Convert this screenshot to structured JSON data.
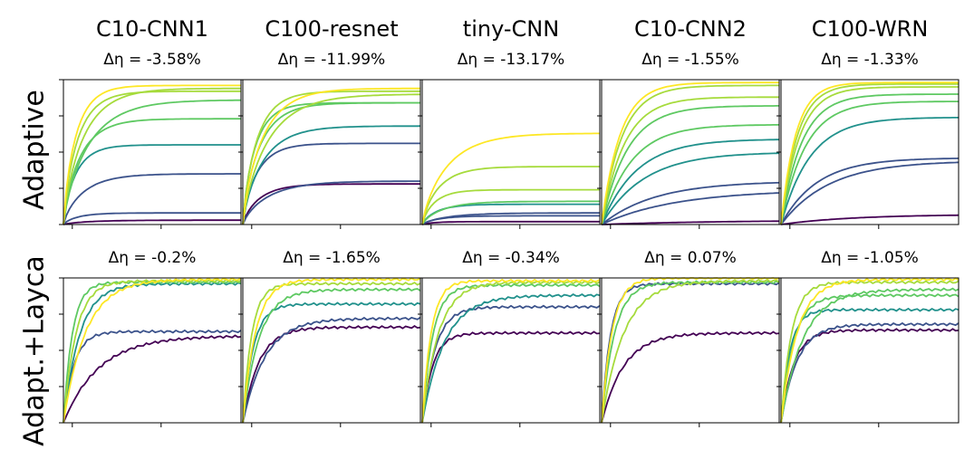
{
  "columns": [
    "C10-CNN1",
    "C100-resnet",
    "tiny-CNN",
    "C10-CNN2",
    "C100-WRN"
  ],
  "rows": [
    "Adaptive",
    "Adapt.+Layca"
  ],
  "delta_prefix": "Δη = ",
  "palette": [
    "#440154",
    "#3b528b",
    "#21918c",
    "#5ec962",
    "#a6db3c",
    "#fde725"
  ],
  "chart_data": {
    "type": "line",
    "title": "",
    "xlabel": "",
    "ylabel": "",
    "xlim": [
      0,
      1
    ],
    "ylim": [
      0,
      1
    ],
    "description_of_axes": "normalized training progress vs accuracy; tick labels not shown",
    "panels": [
      {
        "row": "Adaptive",
        "column": "C10-CNN1",
        "delta": "-3.58%",
        "finals": [
          0.03,
          0.08,
          0.35,
          0.55,
          0.73,
          0.86,
          0.92,
          0.94,
          0.96
        ]
      },
      {
        "row": "Adaptive",
        "column": "C100-resnet",
        "delta": "-11.99%",
        "finals": [
          0.28,
          0.3,
          0.56,
          0.68,
          0.84,
          0.84,
          0.9,
          0.92,
          0.94
        ]
      },
      {
        "row": "Adaptive",
        "column": "tiny-CNN",
        "delta": "-13.17%",
        "finals": [
          0.02,
          0.06,
          0.08,
          0.14,
          0.16,
          0.24,
          0.4,
          0.63
        ]
      },
      {
        "row": "Adaptive",
        "column": "C10-CNN2",
        "delta": "-1.55%",
        "finals": [
          0.03,
          0.24,
          0.3,
          0.5,
          0.59,
          0.69,
          0.82,
          0.88,
          0.96,
          0.98
        ]
      },
      {
        "row": "Adaptive",
        "column": "C100-WRN",
        "delta": "-1.33%",
        "finals": [
          0.07,
          0.44,
          0.46,
          0.74,
          0.85,
          0.9,
          0.95,
          0.97,
          0.98
        ]
      },
      {
        "row": "Adapt.+Layca",
        "column": "C10-CNN1",
        "delta": "-0.2%",
        "finals": [
          0.6,
          0.63,
          0.96,
          0.97,
          0.98,
          0.99
        ]
      },
      {
        "row": "Adapt.+Layca",
        "column": "C100-resnet",
        "delta": "-1.65%",
        "finals": [
          0.66,
          0.72,
          0.82,
          0.92,
          0.96,
          0.99
        ]
      },
      {
        "row": "Adapt.+Layca",
        "column": "tiny-CNN",
        "delta": "-0.34%",
        "finals": [
          0.62,
          0.8,
          0.88,
          0.95,
          0.97,
          0.98
        ]
      },
      {
        "row": "Adapt.+Layca",
        "column": "C10-CNN2",
        "delta": "0.07%",
        "finals": [
          0.62,
          0.96,
          0.97,
          0.98,
          1.0
        ]
      },
      {
        "row": "Adapt.+Layca",
        "column": "C100-WRN",
        "delta": "-1.05%",
        "finals": [
          0.64,
          0.68,
          0.78,
          0.88,
          0.92,
          0.97,
          0.99
        ]
      }
    ]
  }
}
